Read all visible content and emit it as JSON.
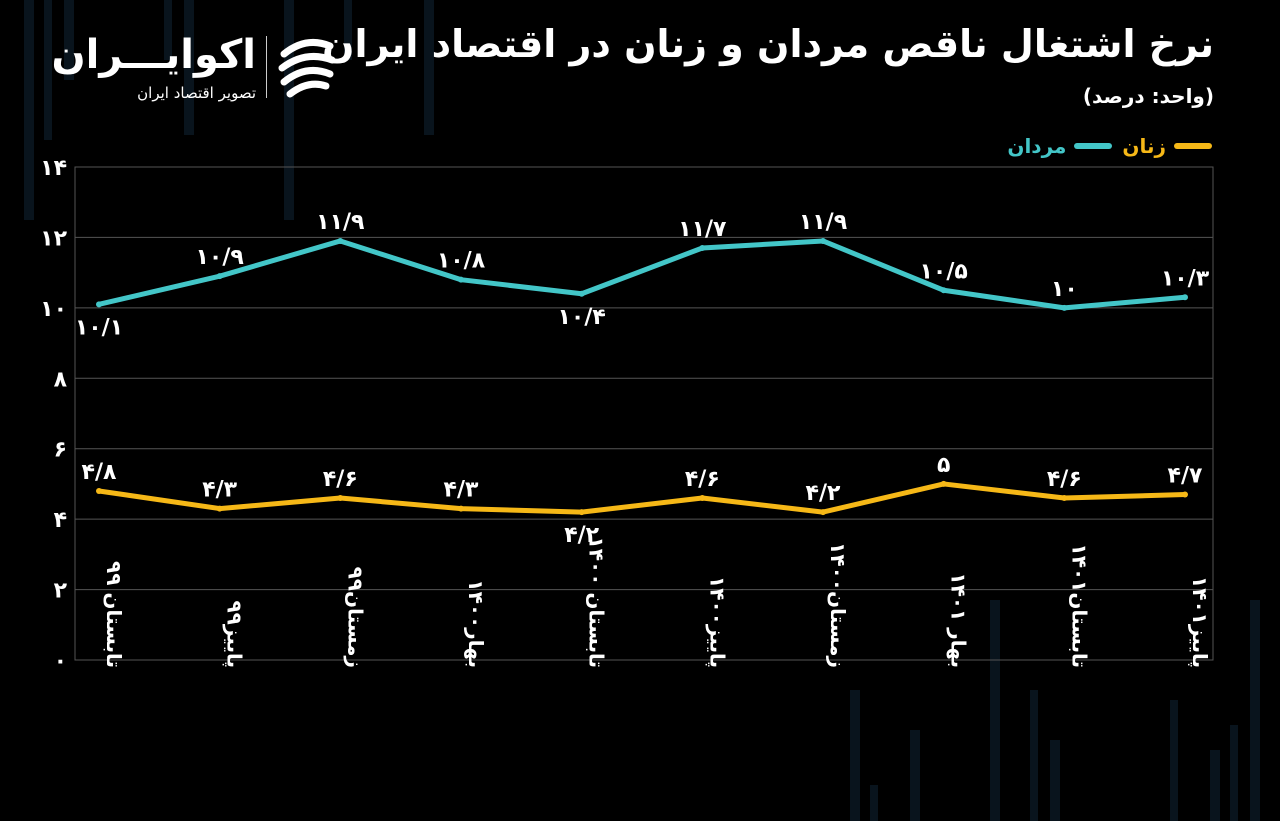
{
  "brand": {
    "name": "اکوایـــران",
    "tagline": "تصویر اقتصاد ایران"
  },
  "header": {
    "title": "نرخ اشتغال ناقص مردان و زنان در اقتصاد ایران",
    "unit_note": "(واحد: درصد)"
  },
  "colors": {
    "men": "#43c6c8",
    "women": "#f6b817",
    "grid": "#555555",
    "background": "#000000"
  },
  "chart_data": {
    "type": "line",
    "categories": [
      "تابستان ۹۹",
      "پاییز۹۹",
      "زمستان۹۹",
      "بهار۱۴۰۰",
      "تابستان ۱۴۰۰",
      "پاییز۱۴۰۰",
      "زمستان۱۴۰۰",
      "بهار ۱۴۰۱",
      "تابستان۱۴۰۱",
      "پاییز۱۴۰۱"
    ],
    "series": [
      {
        "name": "مردان",
        "values": [
          10.1,
          10.9,
          11.9,
          10.8,
          10.4,
          11.7,
          11.9,
          10.5,
          10,
          10.3
        ],
        "labels": [
          "۱۰/۱",
          "۱۰/۹",
          "۱۱/۹",
          "۱۰/۸",
          "۱۰/۴",
          "۱۱/۷",
          "۱۱/۹",
          "۱۰/۵",
          "۱۰",
          "۱۰/۳"
        ],
        "label_position": [
          "below",
          "above",
          "above",
          "above",
          "below",
          "above",
          "above",
          "above",
          "above",
          "above"
        ]
      },
      {
        "name": "زنان",
        "values": [
          4.8,
          4.3,
          4.6,
          4.3,
          4.2,
          4.6,
          4.2,
          5,
          4.6,
          4.7
        ],
        "labels": [
          "۴/۸",
          "۴/۳",
          "۴/۶",
          "۴/۳",
          "۴/۲",
          "۴/۶",
          "۴/۲",
          "۵",
          "۴/۶",
          "۴/۷"
        ],
        "label_position": [
          "above",
          "above",
          "above",
          "above",
          "below",
          "above",
          "above",
          "above",
          "above",
          "above"
        ]
      }
    ],
    "ylim": [
      0,
      14
    ],
    "yticks": [
      0,
      2,
      4,
      6,
      8,
      10,
      12,
      14
    ],
    "ytick_labels": [
      "۰",
      "۲",
      "۴",
      "۶",
      "۸",
      "۱۰",
      "۱۲",
      "۱۴"
    ],
    "grid": true,
    "legend_position": "top-right"
  }
}
